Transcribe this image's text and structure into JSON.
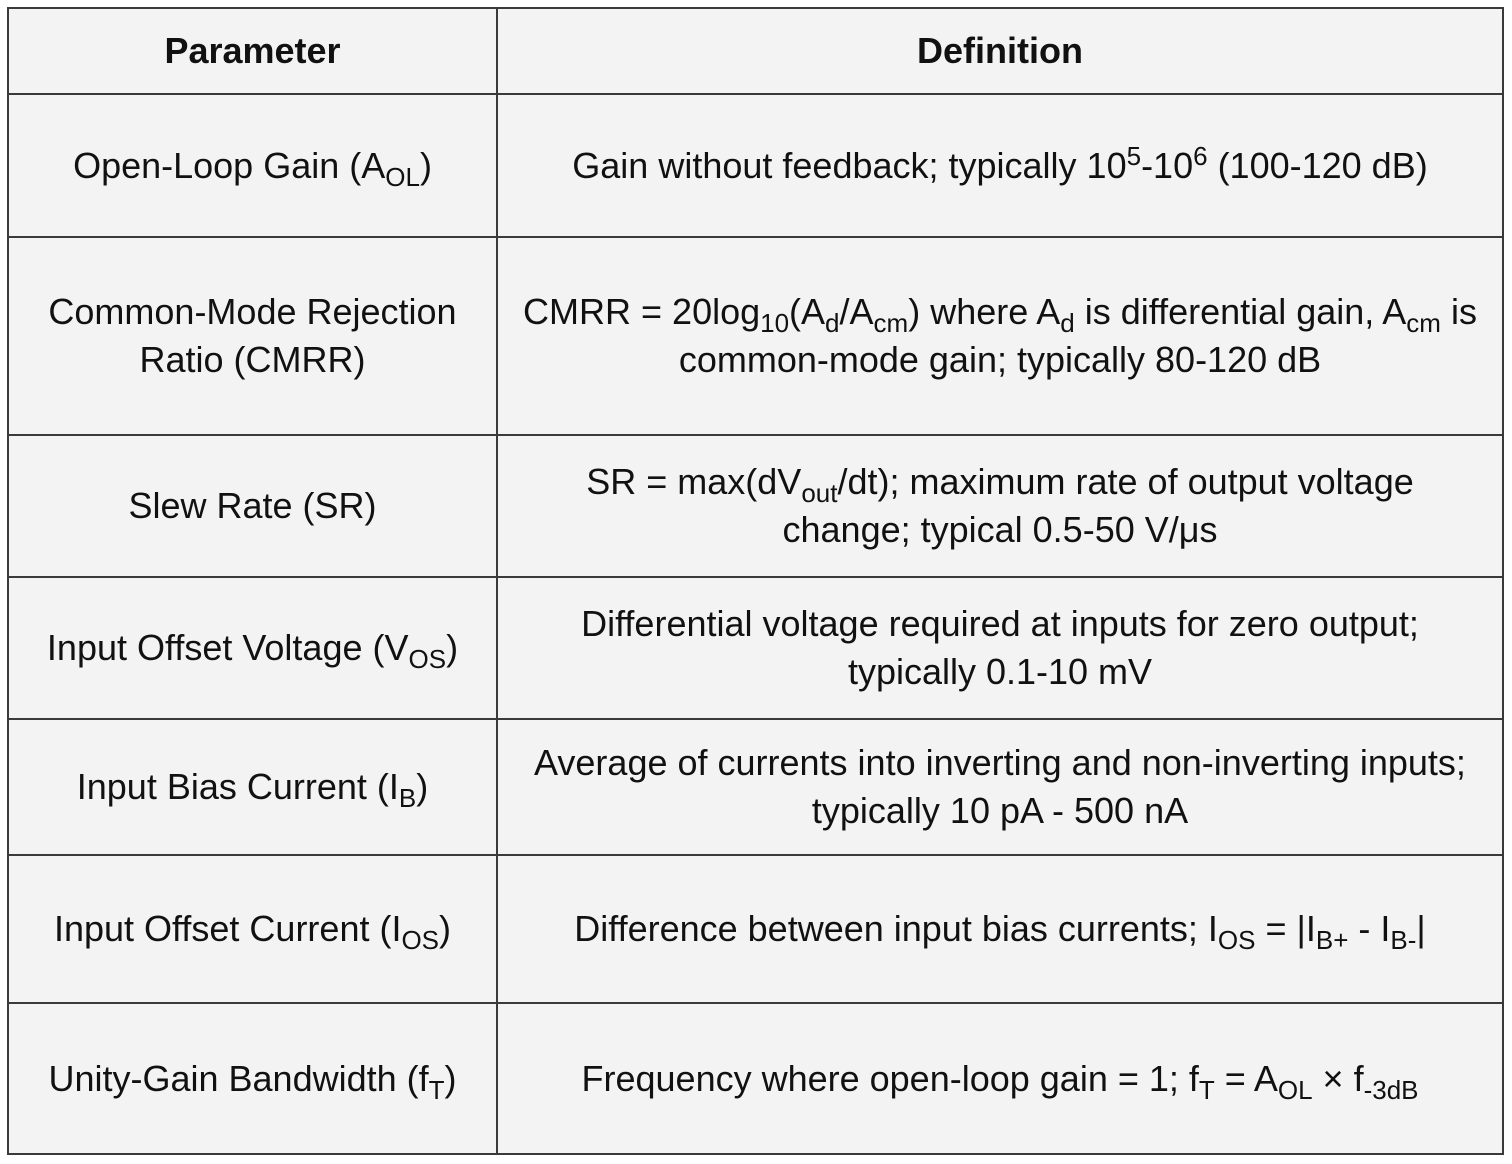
{
  "table": {
    "header": [
      "Parameter",
      "Definition"
    ],
    "rows": [
      [
        [
          "Open-Loop Gain (A",
          {
            "sub": "OL"
          },
          ")"
        ],
        [
          "Gain without feedback; typically 10",
          {
            "sup": "5"
          },
          "-10",
          {
            "sup": "6"
          },
          " (100-120 dB)"
        ]
      ],
      [
        [
          "Common-Mode Rejection Ratio (CMRR)"
        ],
        [
          "CMRR = 20log",
          {
            "sub": "10"
          },
          "(A",
          {
            "sub": "d"
          },
          "/A",
          {
            "sub": "cm"
          },
          ") where A",
          {
            "sub": "d"
          },
          " is differential gain, A",
          {
            "sub": "cm"
          },
          " is common-mode gain; typically 80-120 dB"
        ]
      ],
      [
        [
          "Slew Rate (SR)"
        ],
        [
          "SR = max(dV",
          {
            "sub": "out"
          },
          "/dt); maximum rate of output voltage change; typical 0.5-50 V/μs"
        ]
      ],
      [
        [
          "Input Offset Voltage (V",
          {
            "sub": "OS"
          },
          ")"
        ],
        [
          "Differential voltage required at inputs for zero output; typically 0.1-10 mV"
        ]
      ],
      [
        [
          "Input Bias Current (I",
          {
            "sub": "B"
          },
          ")"
        ],
        [
          "Average of currents into inverting and non-inverting inputs; typically 10 pA - 500 nA"
        ]
      ],
      [
        [
          "Input Offset Current (I",
          {
            "sub": "OS"
          },
          ")"
        ],
        [
          "Difference between input bias currents; I",
          {
            "sub": "OS"
          },
          " = |I",
          {
            "sub": "B+"
          },
          " - I",
          {
            "sub": "B-"
          },
          "|"
        ]
      ],
      [
        [
          "Unity-Gain Bandwidth (f",
          {
            "sub": "T"
          },
          ")"
        ],
        [
          "Frequency where open-loop gain = 1; f",
          {
            "sub": "T"
          },
          " = A",
          {
            "sub": "OL"
          },
          " × f",
          {
            "sub": "-3dB"
          }
        ]
      ]
    ]
  }
}
